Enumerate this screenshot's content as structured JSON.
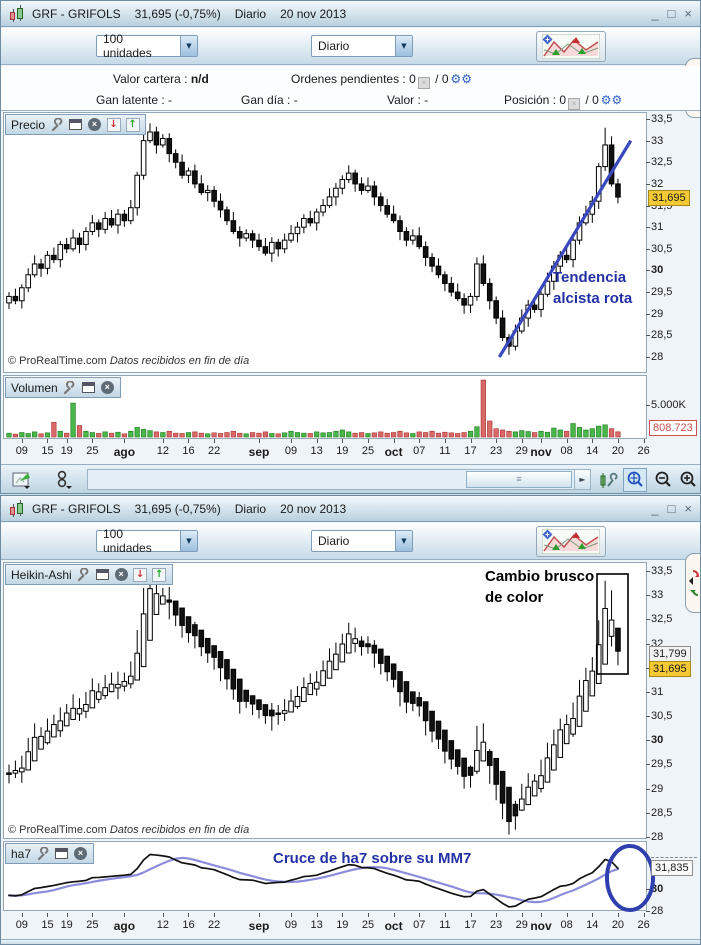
{
  "window": {
    "title_symbol": "GRF - GRIFOLS",
    "title_price": "31,695 (-0,75%)",
    "title_period": "Diario",
    "title_date": "20 nov 2013",
    "controls": {
      "minimize": "_",
      "maximize": "□",
      "close": "×"
    },
    "toolbar": {
      "units_value": "100 unidades",
      "period_value": "Diario"
    }
  },
  "infobar": {
    "valor_cartera_label": "Valor cartera :",
    "valor_cartera_value": "n/d",
    "ordenes_label": "Ordenes pendientes :",
    "ordenes_n1": "0",
    "ordenes_sep": "/",
    "ordenes_n2": "0",
    "gan_latente": "Gan latente : -",
    "gan_dia": "Gan día : -",
    "valor": "Valor : -",
    "posicion_label": "Posición :",
    "posicion_n1": "0",
    "posicion_sep": "/",
    "posicion_n2": "0"
  },
  "win1": {
    "price_panel_label": "Precio",
    "volume_panel_label": "Volumen",
    "annotation_line1": "Tendencia",
    "annotation_line2": "alcista rota",
    "copyright": "© ProRealTime.com",
    "copyright_note": "Datos recibidos en fin de día",
    "last_price": "31,695",
    "volume_axis_label": "5.000K",
    "volume_last": "808.723"
  },
  "win2": {
    "heikin_panel_label": "Heikin-Ashi",
    "annotation_line1": "Cambio brusco",
    "annotation_line2": "de color",
    "copyright": "© ProRealTime.com",
    "copyright_note": "Datos recibidos en fin de día",
    "box_upper": "31,799",
    "box_lower": "31,695",
    "ha7_panel_label": "ha7",
    "ha7_annotation": "Cruce de ha7 sobre su MM7",
    "ha7_value": "31,835"
  },
  "chart_data": {
    "type": "candlestick",
    "title": "GRF - GRIFOLS Diario",
    "ylim": [
      28,
      33.5
    ],
    "y_ticks": [
      {
        "v": 33.5,
        "l": "33,5"
      },
      {
        "v": 33,
        "l": "33"
      },
      {
        "v": 32.5,
        "l": "32,5"
      },
      {
        "v": 32,
        "l": "32"
      },
      {
        "v": 31.5,
        "l": "31,5"
      },
      {
        "v": 31,
        "l": "31"
      },
      {
        "v": 30.5,
        "l": "30,5"
      },
      {
        "v": 30,
        "l": "30",
        "b": 1
      },
      {
        "v": 29.5,
        "l": "29,5"
      },
      {
        "v": 29,
        "l": "29"
      },
      {
        "v": 28.5,
        "l": "28,5"
      },
      {
        "v": 28,
        "l": "28"
      }
    ],
    "x_ticks": [
      {
        "i": 2,
        "l": "09"
      },
      {
        "i": 6,
        "l": "15"
      },
      {
        "i": 9,
        "l": "19"
      },
      {
        "i": 13,
        "l": "25"
      },
      {
        "i": 18,
        "l": "ago",
        "b": 1
      },
      {
        "i": 24,
        "l": "12"
      },
      {
        "i": 28,
        "l": "16"
      },
      {
        "i": 32,
        "l": "22"
      },
      {
        "i": 39,
        "l": "sep",
        "b": 1
      },
      {
        "i": 44,
        "l": "09"
      },
      {
        "i": 48,
        "l": "13"
      },
      {
        "i": 52,
        "l": "19"
      },
      {
        "i": 56,
        "l": "25"
      },
      {
        "i": 60,
        "l": "oct",
        "b": 1
      },
      {
        "i": 64,
        "l": "07"
      },
      {
        "i": 68,
        "l": "11"
      },
      {
        "i": 72,
        "l": "17"
      },
      {
        "i": 76,
        "l": "23"
      },
      {
        "i": 80,
        "l": "29"
      },
      {
        "i": 83,
        "l": "nov",
        "b": 1
      },
      {
        "i": 87,
        "l": "08"
      },
      {
        "i": 91,
        "l": "14"
      },
      {
        "i": 95,
        "l": "20"
      },
      {
        "i": 99,
        "l": "26"
      }
    ],
    "candles_ohlc": [
      [
        29.25,
        29.5,
        29.11,
        29.4
      ],
      [
        29.4,
        29.58,
        29.22,
        29.3
      ],
      [
        29.3,
        29.68,
        29.12,
        29.6
      ],
      [
        29.6,
        30.05,
        29.5,
        29.9
      ],
      [
        29.9,
        30.35,
        29.84,
        30.15
      ],
      [
        30.15,
        30.27,
        29.85,
        30.05
      ],
      [
        30.05,
        30.45,
        29.91,
        30.35
      ],
      [
        30.35,
        30.53,
        30.17,
        30.25
      ],
      [
        30.25,
        30.68,
        30.07,
        30.6
      ],
      [
        30.6,
        30.75,
        30.4,
        30.5
      ],
      [
        30.5,
        30.95,
        30.44,
        30.75
      ],
      [
        30.75,
        30.87,
        30.4,
        30.6
      ],
      [
        30.6,
        31.0,
        30.46,
        30.9
      ],
      [
        30.9,
        31.28,
        30.82,
        31.1
      ],
      [
        31.1,
        31.18,
        30.77,
        30.95
      ],
      [
        30.95,
        31.35,
        30.85,
        31.2
      ],
      [
        31.2,
        31.4,
        30.99,
        31.05
      ],
      [
        31.05,
        31.42,
        30.85,
        31.3
      ],
      [
        31.3,
        31.4,
        31.01,
        31.15
      ],
      [
        31.15,
        31.63,
        31.07,
        31.45
      ],
      [
        31.45,
        32.28,
        31.27,
        32.2
      ],
      [
        32.2,
        33.15,
        32.1,
        33.0
      ],
      [
        33.0,
        33.4,
        32.94,
        33.2
      ],
      [
        33.2,
        33.32,
        32.7,
        32.9
      ],
      [
        32.9,
        33.15,
        32.84,
        33.05
      ],
      [
        33.05,
        33.17,
        32.5,
        32.7
      ],
      [
        32.7,
        32.8,
        32.36,
        32.5
      ],
      [
        32.5,
        32.68,
        32.12,
        32.2
      ],
      [
        32.2,
        32.38,
        32.02,
        32.3
      ],
      [
        32.3,
        32.45,
        31.9,
        32.0
      ],
      [
        32.0,
        32.2,
        31.74,
        31.8
      ],
      [
        31.8,
        31.97,
        31.6,
        31.85
      ],
      [
        31.85,
        31.95,
        31.46,
        31.6
      ],
      [
        31.6,
        31.78,
        31.22,
        31.4
      ],
      [
        31.4,
        31.48,
        31.05,
        31.15
      ],
      [
        31.15,
        31.35,
        30.84,
        30.9
      ],
      [
        30.9,
        31.02,
        30.55,
        30.75
      ],
      [
        30.75,
        30.95,
        30.67,
        30.85
      ],
      [
        30.85,
        30.93,
        30.52,
        30.7
      ],
      [
        30.7,
        30.85,
        30.45,
        30.55
      ],
      [
        30.55,
        30.75,
        30.34,
        30.4
      ],
      [
        30.4,
        30.77,
        30.2,
        30.65
      ],
      [
        30.65,
        30.73,
        30.32,
        30.5
      ],
      [
        30.5,
        30.85,
        30.4,
        30.7
      ],
      [
        30.7,
        31.05,
        30.64,
        30.85
      ],
      [
        30.85,
        31.12,
        30.65,
        31.0
      ],
      [
        31.0,
        31.3,
        30.86,
        31.2
      ],
      [
        31.2,
        31.38,
        31.02,
        31.1
      ],
      [
        31.1,
        31.43,
        30.92,
        31.35
      ],
      [
        31.35,
        31.65,
        31.25,
        31.5
      ],
      [
        31.5,
        31.9,
        31.44,
        31.7
      ],
      [
        31.7,
        32.02,
        31.5,
        31.9
      ],
      [
        31.9,
        32.2,
        31.76,
        32.1
      ],
      [
        32.1,
        32.43,
        32.02,
        32.25
      ],
      [
        32.25,
        32.33,
        31.82,
        32.0
      ],
      [
        32.0,
        32.15,
        31.75,
        31.85
      ],
      [
        31.85,
        32.15,
        31.79,
        31.95
      ],
      [
        31.95,
        32.07,
        31.5,
        31.7
      ],
      [
        31.7,
        31.8,
        31.36,
        31.5
      ],
      [
        31.5,
        31.65,
        31.22,
        31.3
      ],
      [
        31.3,
        31.5,
        31.09,
        31.15
      ],
      [
        31.15,
        31.27,
        30.7,
        30.9
      ],
      [
        30.9,
        31.0,
        30.56,
        30.7
      ],
      [
        30.7,
        30.95,
        30.6,
        30.8
      ],
      [
        30.8,
        31.0,
        30.49,
        30.55
      ],
      [
        30.55,
        30.67,
        30.1,
        30.3
      ],
      [
        30.3,
        30.4,
        29.96,
        30.1
      ],
      [
        30.1,
        30.28,
        29.82,
        29.9
      ],
      [
        29.9,
        29.98,
        29.52,
        29.7
      ],
      [
        29.7,
        29.85,
        29.4,
        29.5
      ],
      [
        29.5,
        29.7,
        29.29,
        29.35
      ],
      [
        29.35,
        29.47,
        29.0,
        29.2
      ],
      [
        29.2,
        29.48,
        29.02,
        29.4
      ],
      [
        29.4,
        30.3,
        29.3,
        30.15
      ],
      [
        30.15,
        30.35,
        29.64,
        29.7
      ],
      [
        29.7,
        29.82,
        29.1,
        29.3
      ],
      [
        29.3,
        29.4,
        28.76,
        28.9
      ],
      [
        28.9,
        29.08,
        28.37,
        28.45
      ],
      [
        28.45,
        28.53,
        28.05,
        28.25
      ],
      [
        28.25,
        28.75,
        28.15,
        28.6
      ],
      [
        28.6,
        29.1,
        28.54,
        28.9
      ],
      [
        28.9,
        29.32,
        28.7,
        29.2
      ],
      [
        29.2,
        29.3,
        29.02,
        29.1
      ],
      [
        29.1,
        29.6,
        28.92,
        29.45
      ],
      [
        29.45,
        29.95,
        29.39,
        29.75
      ],
      [
        29.75,
        30.22,
        29.55,
        30.1
      ],
      [
        30.1,
        30.45,
        29.96,
        30.35
      ],
      [
        30.35,
        30.53,
        30.17,
        30.25
      ],
      [
        30.25,
        30.78,
        30.07,
        30.7
      ],
      [
        30.7,
        31.25,
        30.6,
        31.1
      ],
      [
        31.1,
        31.5,
        31.04,
        31.3
      ],
      [
        31.3,
        31.72,
        31.1,
        31.6
      ],
      [
        31.6,
        32.48,
        31.42,
        32.4
      ],
      [
        32.4,
        33.3,
        32.3,
        32.9
      ],
      [
        32.9,
        33.1,
        31.94,
        32.0
      ],
      [
        32.0,
        32.12,
        31.55,
        31.695
      ]
    ],
    "volumes_k": [
      600,
      450,
      700,
      550,
      800,
      500,
      650,
      2300,
      900,
      600,
      5300,
      1800,
      900,
      700,
      550,
      800,
      600,
      750,
      500,
      900,
      1500,
      1200,
      1000,
      800,
      700,
      900,
      600,
      550,
      700,
      800,
      600,
      500,
      650,
      550,
      700,
      900,
      600,
      500,
      700,
      600,
      800,
      550,
      500,
      650,
      900,
      700,
      600,
      550,
      800,
      650,
      700,
      900,
      1100,
      800,
      600,
      700,
      550,
      650,
      800,
      600,
      700,
      900,
      650,
      550,
      800,
      700,
      900,
      600,
      750,
      650,
      550,
      700,
      900,
      1600,
      8900,
      2500,
      1300,
      1100,
      900,
      800,
      1000,
      850,
      700,
      900,
      750,
      1400,
      1100,
      900,
      2100,
      1500,
      1100,
      1300,
      1700,
      1900,
      1300,
      809
    ],
    "volume_grid_k": 5000,
    "trendline": {
      "from_index": 76.5,
      "from_value": 28.0,
      "to_index": 97,
      "to_value": 33.0
    },
    "ha7_ticks": [
      {
        "v": 30,
        "l": "30",
        "b": 1
      },
      {
        "v": 28,
        "l": "28"
      }
    ],
    "colors": {
      "up_fill": "#ffffff",
      "down_fill": "#111111",
      "stroke": "#000000",
      "vol_up": "#49b649",
      "vol_down": "#d96a6a",
      "trend_blue": "#3a48c0",
      "annotation_blue": "#2431a6",
      "ha7_line": "#111111",
      "mm7_line": "#8c8cdc",
      "last_price_bg": "#f3ca33"
    }
  }
}
